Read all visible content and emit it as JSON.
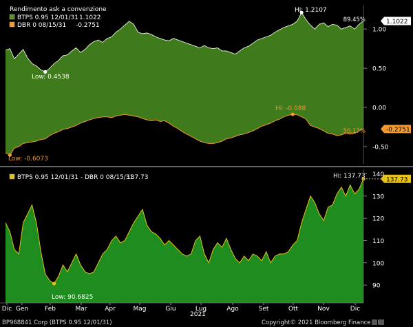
{
  "chart_data": [
    {
      "type": "area",
      "title": "Rendimento ask a convenzione",
      "ylim": [
        -0.72,
        1.3
      ],
      "y_ticks": [
        "1.00",
        "0.50",
        "0.00",
        "-0.50"
      ],
      "y_tick_values": [
        1.0,
        0.5,
        0.0,
        -0.5
      ],
      "series": [
        {
          "name": "BTPS 0.95 12/01/31",
          "last_value": "1.1022",
          "color": "#3f7a1c",
          "values": [
            0.73,
            0.75,
            0.62,
            0.68,
            0.74,
            0.63,
            0.56,
            0.53,
            0.48,
            0.4538,
            0.5,
            0.56,
            0.6,
            0.66,
            0.67,
            0.72,
            0.76,
            0.7,
            0.74,
            0.8,
            0.84,
            0.86,
            0.83,
            0.88,
            0.9,
            0.96,
            1.0,
            1.05,
            1.1,
            1.06,
            0.96,
            0.94,
            0.95,
            0.93,
            0.9,
            0.88,
            0.86,
            0.85,
            0.88,
            0.86,
            0.84,
            0.82,
            0.8,
            0.78,
            0.76,
            0.79,
            0.76,
            0.75,
            0.76,
            0.72,
            0.72,
            0.7,
            0.68,
            0.72,
            0.76,
            0.78,
            0.82,
            0.86,
            0.88,
            0.9,
            0.92,
            0.96,
            0.99,
            1.02,
            1.04,
            1.06,
            1.1,
            1.2107,
            1.12,
            1.05,
            1.0,
            1.06,
            1.08,
            1.03,
            1.06,
            1.05,
            1.0,
            1.02,
            1.04,
            1.0,
            1.06,
            1.1022
          ],
          "low": {
            "label": "Low: 0.4538",
            "index": 9
          },
          "high": {
            "label": "Hi: 1.2107",
            "index": 67
          }
        },
        {
          "name": "DBR 0 08/15/31",
          "last_value": "-0.2751",
          "color": "#f29a2e",
          "values": [
            -0.58,
            -0.6073,
            -0.52,
            -0.5,
            -0.46,
            -0.45,
            -0.44,
            -0.43,
            -0.41,
            -0.4,
            -0.36,
            -0.33,
            -0.31,
            -0.28,
            -0.27,
            -0.25,
            -0.23,
            -0.2,
            -0.18,
            -0.16,
            -0.14,
            -0.13,
            -0.12,
            -0.12,
            -0.13,
            -0.11,
            -0.1,
            -0.09,
            -0.1,
            -0.11,
            -0.12,
            -0.14,
            -0.16,
            -0.17,
            -0.16,
            -0.18,
            -0.17,
            -0.2,
            -0.24,
            -0.27,
            -0.31,
            -0.34,
            -0.37,
            -0.4,
            -0.43,
            -0.45,
            -0.46,
            -0.46,
            -0.45,
            -0.43,
            -0.4,
            -0.39,
            -0.37,
            -0.35,
            -0.34,
            -0.32,
            -0.3,
            -0.27,
            -0.24,
            -0.22,
            -0.2,
            -0.17,
            -0.15,
            -0.12,
            -0.1,
            -0.088,
            -0.095,
            -0.12,
            -0.15,
            -0.23,
            -0.25,
            -0.27,
            -0.3,
            -0.33,
            -0.34,
            -0.36,
            -0.35,
            -0.33,
            -0.34,
            -0.33,
            -0.3,
            -0.2751
          ],
          "low": {
            "label": "Low: -0.6073",
            "index": 1
          },
          "high": {
            "label": "Hi: -0.088",
            "index": 65
          }
        }
      ],
      "spread_badge": "89.45%",
      "low_badge": "50.17%"
    },
    {
      "type": "area",
      "ylim": [
        82,
        142
      ],
      "y_ticks": [
        "140",
        "130",
        "120",
        "110",
        "100",
        "90"
      ],
      "y_tick_values": [
        140,
        130,
        120,
        110,
        100,
        90
      ],
      "series": [
        {
          "name": "BTPS 0.95 12/01/31 - DBR 0 08/15/31",
          "last_value": "137.73",
          "color": "#1e8c1e",
          "values": [
            118,
            114,
            106,
            104,
            118,
            122,
            126,
            118,
            105,
            95,
            92,
            90.6825,
            94,
            99,
            96,
            100,
            104,
            99,
            96,
            95,
            96,
            100,
            104,
            106,
            110,
            112,
            109,
            110,
            114,
            118,
            121,
            124,
            117,
            114,
            113,
            111,
            108,
            110,
            108,
            106,
            104,
            103,
            104,
            110,
            112,
            104,
            100,
            106,
            109,
            107,
            111,
            106,
            102,
            100,
            103,
            101,
            104,
            103,
            101,
            105,
            100,
            103,
            104,
            104,
            105,
            108,
            110,
            118,
            124,
            130,
            127,
            122,
            119,
            125,
            126,
            131,
            134,
            130,
            135,
            131,
            133,
            137.73
          ],
          "low": {
            "label": "Low: 90.6825",
            "index": 11
          },
          "high": {
            "label": "Hi: 137.73",
            "index": 81
          }
        }
      ]
    }
  ],
  "x_axis": {
    "months": [
      "Dic",
      "Gen",
      "Feb",
      "Mar",
      "Apr",
      "Mag",
      "Giu",
      "Lug",
      "Ago",
      "Set",
      "Ott",
      "Nov",
      "Dic"
    ],
    "year": "2021"
  },
  "footer": {
    "left": "BP968841 Corp (BTPS 0.95 12/01/31)",
    "right": "Copyright© 2021 Bloomberg Finance L.P."
  }
}
